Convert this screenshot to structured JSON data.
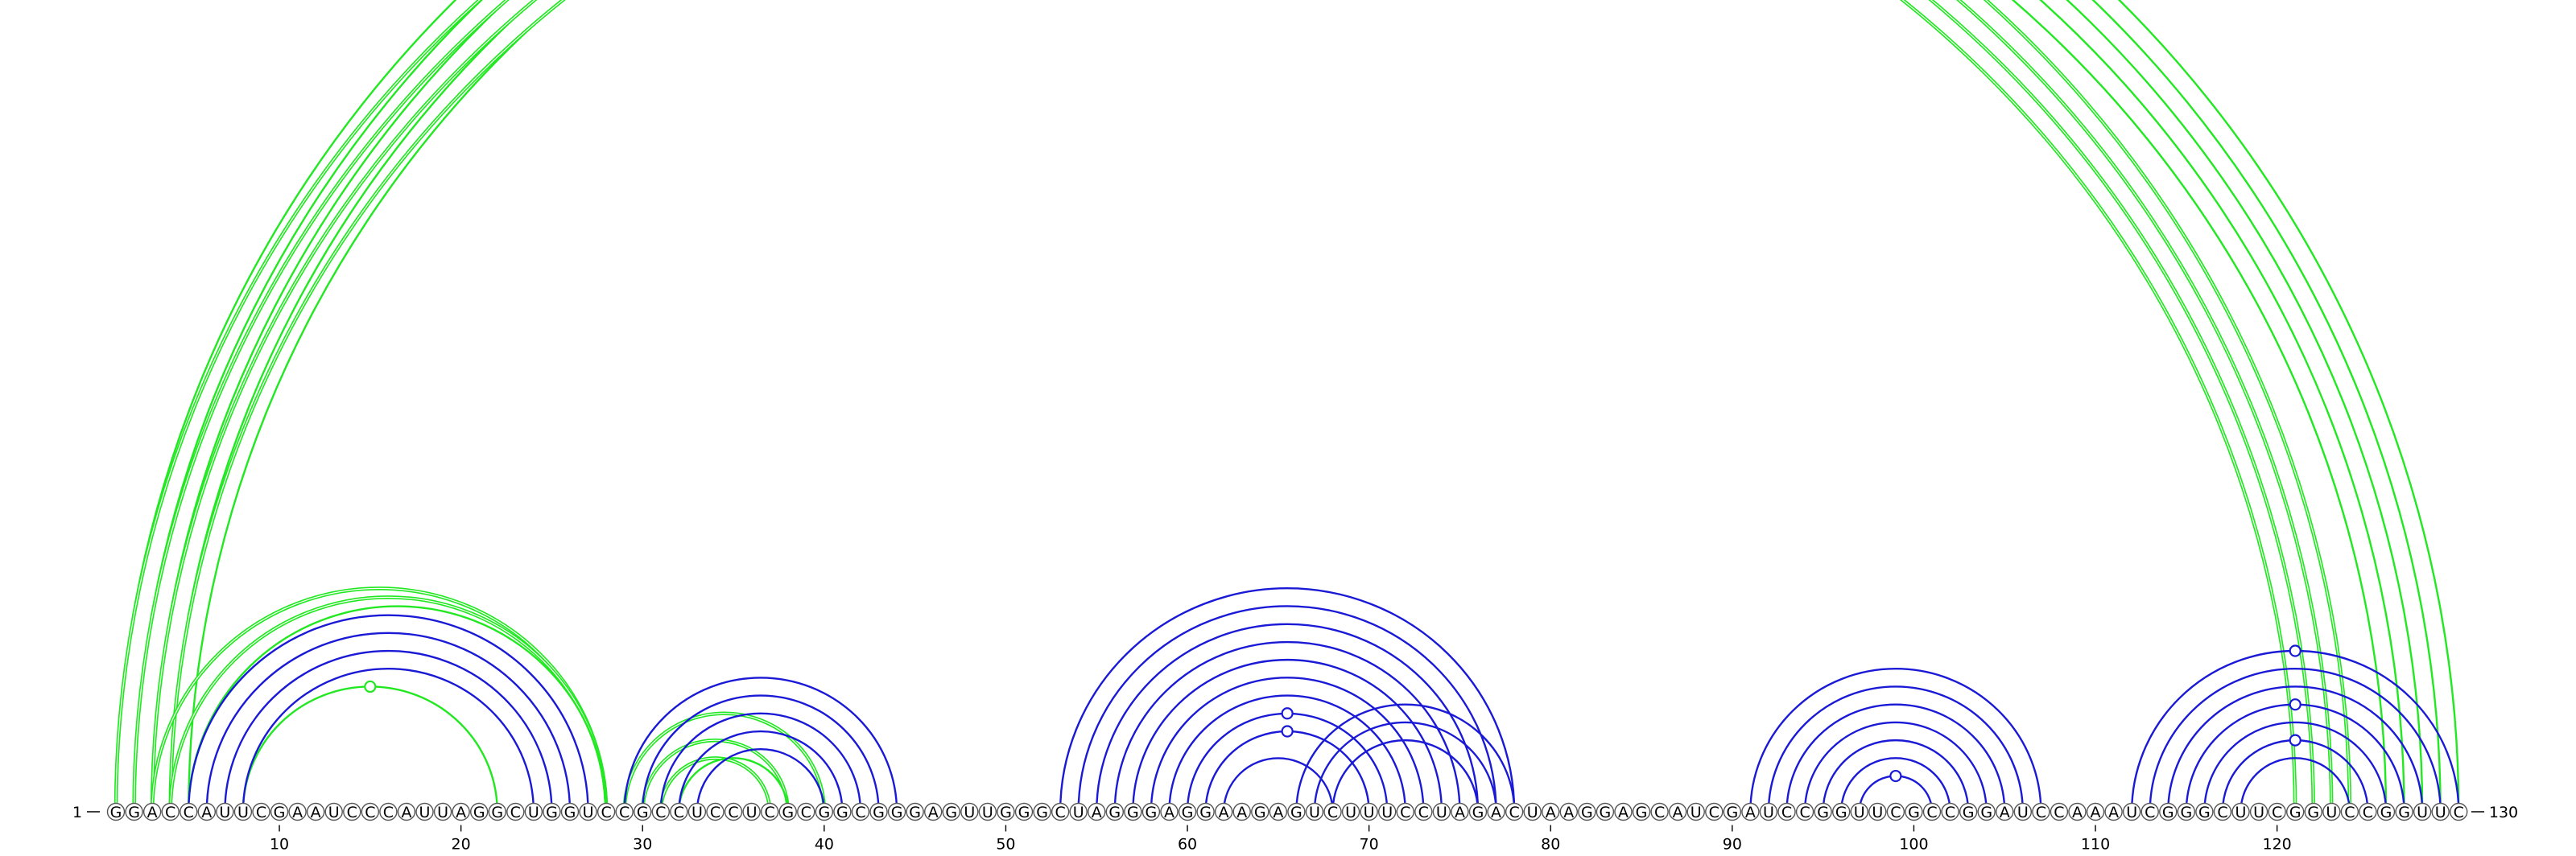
{
  "sequence": "GGACCAUUCGAAUCCCAUUAGGCUGGUCCGCCUCCUCGCGGCGGGAGUUGGGCUAGGGAGGAAGAGUCUUUCCUAGACUAAGGAGCAUCGAUCCGGUUCGCCGGAUCCAAAUCGGGCUUCGGUCCGGUUC",
  "start_label": "1",
  "end_label": "130",
  "ticks": [
    "10",
    "20",
    "30",
    "40",
    "50",
    "60",
    "70",
    "80",
    "90",
    "100",
    "110",
    "120"
  ],
  "colors": {
    "green": "#22e822",
    "blue": "#1a1ad6",
    "circle_stroke": "#555555"
  },
  "arcs": {
    "green": [
      [
        1,
        130,
        1
      ],
      [
        2,
        129,
        1
      ],
      [
        3,
        128,
        1
      ],
      [
        4,
        127,
        1
      ],
      [
        5,
        126,
        1
      ],
      [
        1,
        124,
        2
      ],
      [
        2,
        123,
        2
      ],
      [
        3,
        122,
        2
      ],
      [
        4,
        121,
        2
      ],
      [
        3,
        28,
        2
      ],
      [
        4,
        28,
        2
      ],
      [
        5,
        28,
        1
      ],
      [
        8,
        22,
        1
      ],
      [
        29,
        40,
        2
      ],
      [
        30,
        38,
        2
      ],
      [
        31,
        37,
        2
      ],
      [
        32,
        38,
        1
      ]
    ],
    "blue": [
      [
        5,
        27,
        1
      ],
      [
        6,
        26,
        1
      ],
      [
        7,
        25,
        1
      ],
      [
        8,
        24,
        1
      ],
      [
        29,
        44,
        1
      ],
      [
        30,
        43,
        1
      ],
      [
        31,
        42,
        1
      ],
      [
        32,
        41,
        1
      ],
      [
        33,
        40,
        1
      ],
      [
        53,
        78,
        1
      ],
      [
        54,
        77,
        1
      ],
      [
        55,
        76,
        1
      ],
      [
        56,
        75,
        1
      ],
      [
        57,
        74,
        1
      ],
      [
        58,
        73,
        1
      ],
      [
        59,
        72,
        1
      ],
      [
        60,
        71,
        1
      ],
      [
        61,
        70,
        1
      ],
      [
        62,
        68,
        1
      ],
      [
        66,
        78,
        1
      ],
      [
        67,
        77,
        1
      ],
      [
        68,
        76,
        1
      ],
      [
        91,
        107,
        1
      ],
      [
        92,
        106,
        1
      ],
      [
        93,
        105,
        1
      ],
      [
        94,
        104,
        1
      ],
      [
        95,
        103,
        1
      ],
      [
        96,
        102,
        1
      ],
      [
        97,
        101,
        1
      ],
      [
        112,
        130,
        1
      ],
      [
        113,
        129,
        1
      ],
      [
        114,
        128,
        1
      ],
      [
        115,
        127,
        1
      ],
      [
        116,
        126,
        1
      ],
      [
        117,
        125,
        1
      ],
      [
        118,
        124,
        1
      ]
    ]
  },
  "markers": [
    {
      "i": 1,
      "j": 130,
      "color": "green"
    },
    {
      "i": 8,
      "j": 22,
      "color": "green"
    },
    {
      "i": 60,
      "j": 71,
      "color": "blue"
    },
    {
      "i": 61,
      "j": 70,
      "color": "blue"
    },
    {
      "i": 97,
      "j": 101,
      "color": "blue"
    },
    {
      "i": 112,
      "j": 130,
      "color": "blue"
    },
    {
      "i": 115,
      "j": 127,
      "color": "blue"
    },
    {
      "i": 117,
      "j": 125,
      "color": "blue"
    }
  ]
}
